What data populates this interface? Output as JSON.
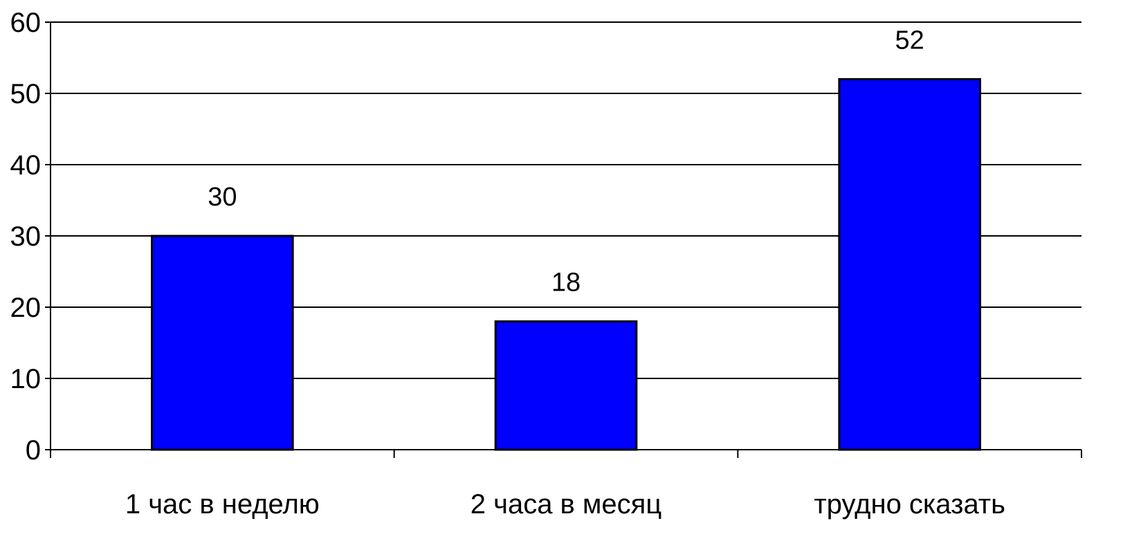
{
  "chart_data": {
    "type": "bar",
    "categories": [
      "1 час в неделю",
      "2 часа в месяц",
      "трудно сказать"
    ],
    "values": [
      30,
      18,
      52
    ],
    "data_labels": [
      "30",
      "18",
      "52"
    ],
    "ylim": [
      0,
      60
    ],
    "y_ticks": [
      0,
      10,
      20,
      30,
      40,
      50,
      60
    ],
    "grid": true,
    "legend": false,
    "colors": {
      "bar": "#0000FF",
      "bar_outline": "#000000",
      "grid": "#000000"
    }
  }
}
